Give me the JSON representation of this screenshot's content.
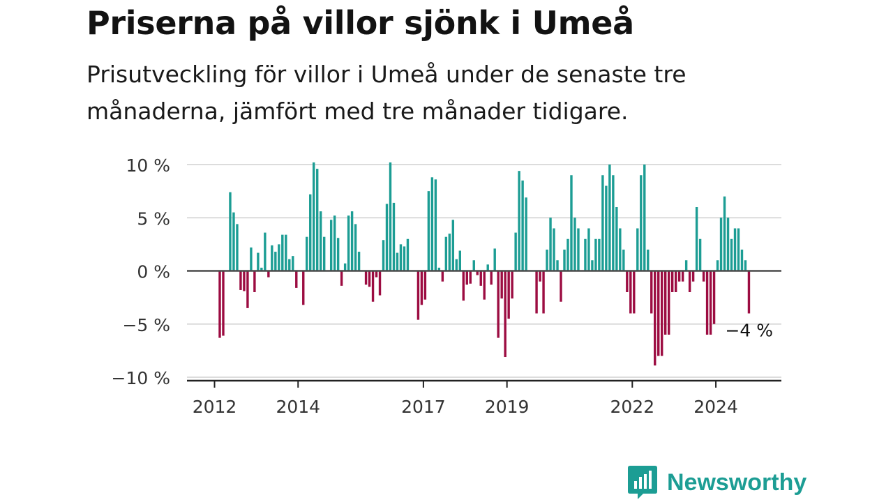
{
  "header": {
    "title": "Priserna på villor sjönk i Umeå",
    "subtitle": "Prisutveckling för villor i Umeå under de senaste tre månaderna, jämfört med tre månader tidigare."
  },
  "brand": {
    "name": "Newsworthy",
    "icon": "newsworthy-logo-icon",
    "color": "#1c9d94"
  },
  "colors": {
    "positive": "#1c9d94",
    "negative": "#9c0c41",
    "grid": "#dcdcdc",
    "axis": "#222222",
    "zero_line": "#4a4a4a"
  },
  "chart_data": {
    "type": "bar",
    "x_unit": "month",
    "x_start": "2012-01",
    "ylim": [
      -10,
      10
    ],
    "yticks": [
      10,
      5,
      0,
      -5,
      -10
    ],
    "ytick_labels": [
      "10 %",
      "5 %",
      "0 %",
      "−5 %",
      "−10 %"
    ],
    "xticks": [
      "2012",
      "2014",
      "2017",
      "2019",
      "2022",
      "2024"
    ],
    "grid": true,
    "last_label": "−4 %",
    "values": [
      0,
      -6.3,
      -6.1,
      0,
      7.4,
      5.5,
      4.4,
      -1.8,
      -1.9,
      -3.5,
      2.2,
      -2,
      1.7,
      0.3,
      3.6,
      -0.6,
      2.4,
      1.8,
      2.5,
      3.4,
      3.4,
      1.1,
      1.4,
      -1.6,
      0,
      -3.2,
      3.2,
      7.2,
      10.2,
      9.6,
      5.6,
      3.2,
      0,
      4.8,
      5.2,
      3.1,
      -1.4,
      0.7,
      5.2,
      5.6,
      4.4,
      1.8,
      0,
      -1.3,
      -1.5,
      -2.9,
      -0.6,
      -2.3,
      2.9,
      6.3,
      10.2,
      6.4,
      1.7,
      2.5,
      2.3,
      3,
      0,
      0,
      -4.6,
      -3.2,
      -2.7,
      7.5,
      8.8,
      8.6,
      0.3,
      -1,
      3.2,
      3.5,
      4.8,
      1.1,
      1.9,
      -2.8,
      -1.3,
      -1.2,
      1,
      -0.4,
      -1.4,
      -2.7,
      0.6,
      -1.3,
      2.1,
      -6.3,
      -2.6,
      -8.1,
      -4.5,
      -2.6,
      3.6,
      9.4,
      8.5,
      6.9,
      0,
      0,
      -4,
      -1,
      -4,
      2,
      5,
      4,
      1,
      -2.9,
      2,
      3,
      9,
      5,
      4,
      0,
      3,
      4,
      1,
      3,
      3,
      9,
      8,
      10,
      9,
      6,
      4,
      2,
      -2,
      -4,
      -4,
      4,
      9,
      10,
      2,
      -4,
      -8.9,
      -8,
      -8,
      -6,
      -6,
      -2,
      -2,
      -1,
      -1,
      1,
      -2,
      -1,
      6,
      3,
      -1,
      -6,
      -6,
      -5,
      1,
      5,
      7,
      5,
      3,
      4,
      4,
      2,
      1,
      -4
    ]
  }
}
